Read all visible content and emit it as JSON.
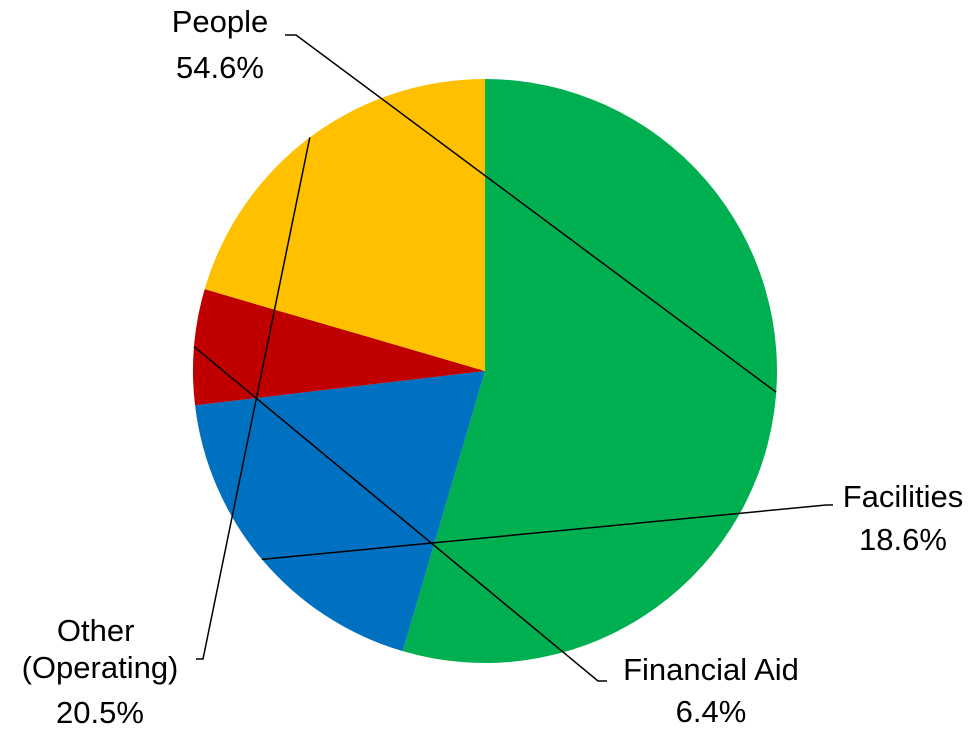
{
  "chart_data": {
    "type": "pie",
    "title": "",
    "slices": [
      {
        "label": "People",
        "value": 54.6,
        "value_label": "54.6%",
        "color": "#00B050"
      },
      {
        "label": "Facilities",
        "value": 18.6,
        "value_label": "18.6%",
        "color": "#0070C0"
      },
      {
        "label": "Financial Aid",
        "value": 6.4,
        "value_label": "6.4%",
        "color": "#C00000"
      },
      {
        "label": "Other (Operating)",
        "value": 20.5,
        "value_label": "20.5%",
        "color": "#FFC000"
      }
    ],
    "start": "top",
    "direction": "clockwise",
    "legend": "none",
    "data_labels": "outside with leader lines"
  }
}
